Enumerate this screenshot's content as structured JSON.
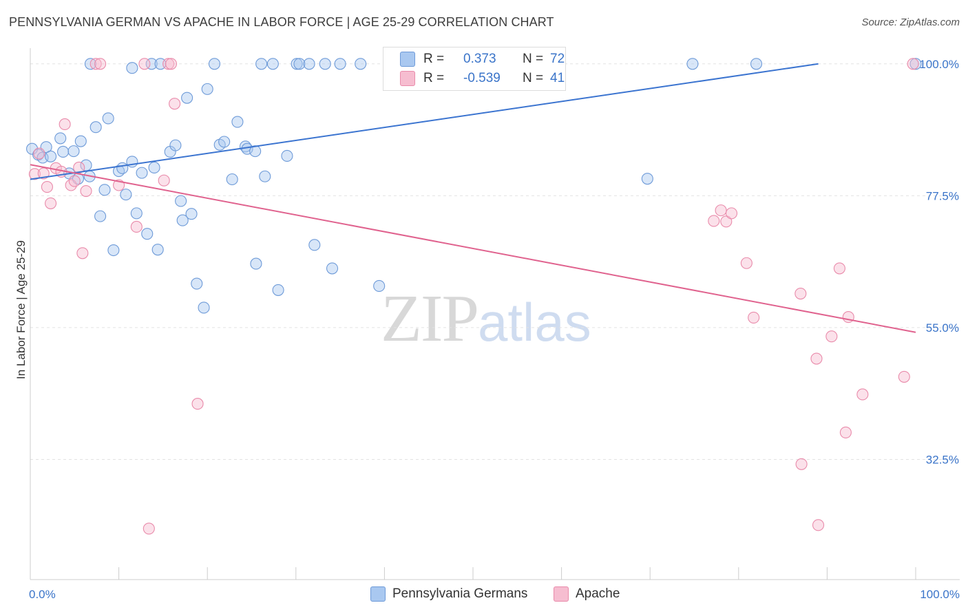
{
  "header": {
    "title": "PENNSYLVANIA GERMAN VS APACHE IN LABOR FORCE | AGE 25-29 CORRELATION CHART",
    "source": "Source: ZipAtlas.com"
  },
  "watermark": {
    "zip": "ZIP",
    "atlas": "atlas"
  },
  "legend": {
    "rows": [
      {
        "r_label": "R =",
        "r_value": "0.373",
        "n_label": "N =",
        "n_value": "72"
      },
      {
        "r_label": "R =",
        "r_value": "-0.539",
        "n_label": "N =",
        "n_value": "41"
      }
    ]
  },
  "bottom_legend": {
    "items": [
      "Pennsylvania Germans",
      "Apache"
    ]
  },
  "colors": {
    "blue_fill": "#a9c8f0",
    "blue_stroke": "#6d9ad8",
    "blue_line": "#3b74d0",
    "pink_fill": "#f6bdd0",
    "pink_stroke": "#e98aaa",
    "pink_line": "#e0628e",
    "tick_label": "#3a74c9",
    "grid": "#e2e2e2"
  },
  "chart_data": {
    "type": "scatter",
    "title": "PENNSYLVANIA GERMAN VS APACHE IN LABOR FORCE | AGE 25-29 CORRELATION CHART",
    "xlabel": "",
    "ylabel": "In Labor Force | Age 25-29",
    "xlim": [
      0,
      100
    ],
    "ylim": [
      12,
      101.5
    ],
    "x_tick_labels": [
      {
        "value": 0,
        "label": "0.0%"
      },
      {
        "value": 100,
        "label": "100.0%"
      }
    ],
    "y_tick_labels": [
      {
        "value": 100,
        "label": "100.0%"
      },
      {
        "value": 77.5,
        "label": "77.5%"
      },
      {
        "value": 55,
        "label": "55.0%"
      },
      {
        "value": 32.5,
        "label": "32.5%"
      }
    ],
    "grid": true,
    "legend_position": "top-center",
    "series": [
      {
        "name": "Pennsylvania Germans",
        "color": "#a9c8f0",
        "points": [
          [
            0.2,
            85.5
          ],
          [
            0.9,
            84.5
          ],
          [
            1.4,
            84.0
          ],
          [
            1.8,
            85.8
          ],
          [
            2.3,
            84.2
          ],
          [
            3.4,
            87.3
          ],
          [
            3.7,
            85.0
          ],
          [
            4.4,
            81.3
          ],
          [
            4.9,
            85.1
          ],
          [
            5.4,
            80.4
          ],
          [
            5.7,
            86.8
          ],
          [
            6.3,
            82.7
          ],
          [
            6.7,
            80.8
          ],
          [
            7.4,
            89.2
          ],
          [
            7.9,
            74.0
          ],
          [
            8.4,
            78.5
          ],
          [
            8.8,
            90.7
          ],
          [
            9.4,
            68.2
          ],
          [
            10.0,
            81.7
          ],
          [
            10.4,
            82.2
          ],
          [
            10.8,
            77.7
          ],
          [
            11.5,
            83.3
          ],
          [
            12.0,
            74.5
          ],
          [
            12.6,
            81.4
          ],
          [
            13.2,
            71.0
          ],
          [
            14.0,
            82.3
          ],
          [
            14.4,
            68.3
          ],
          [
            15.8,
            85.0
          ],
          [
            16.4,
            86.1
          ],
          [
            17.0,
            76.6
          ],
          [
            17.2,
            73.3
          ],
          [
            17.7,
            94.2
          ],
          [
            18.2,
            74.4
          ],
          [
            18.8,
            62.5
          ],
          [
            19.6,
            58.4
          ],
          [
            20.0,
            95.7
          ],
          [
            21.4,
            86.2
          ],
          [
            21.9,
            86.7
          ],
          [
            22.8,
            80.3
          ],
          [
            23.4,
            90.1
          ],
          [
            24.3,
            85.9
          ],
          [
            24.5,
            85.5
          ],
          [
            25.4,
            85.1
          ],
          [
            25.5,
            65.9
          ],
          [
            26.5,
            80.8
          ],
          [
            28.0,
            61.4
          ],
          [
            29.0,
            84.3
          ],
          [
            32.1,
            69.1
          ],
          [
            34.1,
            65.1
          ],
          [
            39.4,
            62.1
          ],
          [
            69.7,
            80.4
          ],
          [
            13.7,
            100.0
          ],
          [
            11.5,
            99.3
          ],
          [
            20.8,
            100.0
          ],
          [
            26.1,
            100.0
          ],
          [
            27.4,
            100.0
          ],
          [
            30.1,
            100.0
          ],
          [
            30.4,
            100.0
          ],
          [
            31.5,
            100.0
          ],
          [
            33.3,
            100.0
          ],
          [
            35.0,
            100.0
          ],
          [
            37.3,
            100.0
          ],
          [
            46.1,
            100.0
          ],
          [
            48.4,
            100.0
          ],
          [
            50.4,
            100.0
          ],
          [
            54.4,
            100.0
          ],
          [
            55.6,
            100.0
          ],
          [
            74.8,
            100.0
          ],
          [
            82.0,
            100.0
          ],
          [
            100.0,
            100.0
          ],
          [
            6.8,
            100.0
          ],
          [
            14.7,
            100.0
          ]
        ]
      },
      {
        "name": "Apache",
        "color": "#f6bdd0",
        "points": [
          [
            0.5,
            81.2
          ],
          [
            1.0,
            84.7
          ],
          [
            1.5,
            81.3
          ],
          [
            1.9,
            79.0
          ],
          [
            2.3,
            76.2
          ],
          [
            2.9,
            82.2
          ],
          [
            3.5,
            81.6
          ],
          [
            3.9,
            89.7
          ],
          [
            4.6,
            79.3
          ],
          [
            5.0,
            80.0
          ],
          [
            5.5,
            82.3
          ],
          [
            5.9,
            67.7
          ],
          [
            6.3,
            78.3
          ],
          [
            7.4,
            100.0
          ],
          [
            7.9,
            100.0
          ],
          [
            10.0,
            79.3
          ],
          [
            12.0,
            72.2
          ],
          [
            12.9,
            100.0
          ],
          [
            13.4,
            20.7
          ],
          [
            15.1,
            80.1
          ],
          [
            15.6,
            100.0
          ],
          [
            15.9,
            100.0
          ],
          [
            16.3,
            93.2
          ],
          [
            18.9,
            42.0
          ],
          [
            77.2,
            73.2
          ],
          [
            78.0,
            75.0
          ],
          [
            78.6,
            73.1
          ],
          [
            79.2,
            74.5
          ],
          [
            80.9,
            66.0
          ],
          [
            81.7,
            56.7
          ],
          [
            87.0,
            60.8
          ],
          [
            87.1,
            31.7
          ],
          [
            88.8,
            49.7
          ],
          [
            89.0,
            21.3
          ],
          [
            90.5,
            53.5
          ],
          [
            91.4,
            65.1
          ],
          [
            92.1,
            37.1
          ],
          [
            92.4,
            56.8
          ],
          [
            94.0,
            43.6
          ],
          [
            98.7,
            46.6
          ],
          [
            99.7,
            100.0
          ]
        ]
      }
    ],
    "trend_lines": [
      {
        "series": "Pennsylvania Germans",
        "from": [
          0,
          80.3
        ],
        "to": [
          89.0,
          100.0
        ]
      },
      {
        "series": "Apache",
        "from": [
          0,
          82.8
        ],
        "to": [
          100,
          54.2
        ]
      }
    ]
  }
}
